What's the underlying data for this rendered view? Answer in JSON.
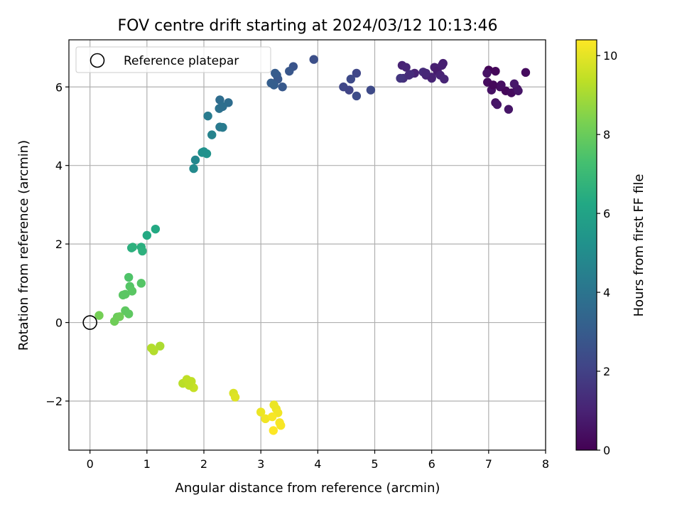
{
  "chart_data": {
    "type": "scatter",
    "title": "FOV centre drift starting at 2024/03/12 10:13:46",
    "xlabel": "Angular distance from reference (arcmin)",
    "ylabel": "Rotation from reference (arcmin)",
    "colorbar_label": "Hours from first FF file",
    "colormap": "viridis",
    "xlim": [
      -0.37,
      8.0
    ],
    "ylim": [
      -3.25,
      7.2
    ],
    "clim": [
      0,
      10.4
    ],
    "xticks": [
      0,
      1,
      2,
      3,
      4,
      5,
      6,
      7,
      8
    ],
    "xtick_labels": [
      "0",
      "1",
      "2",
      "3",
      "4",
      "5",
      "6",
      "7",
      "8"
    ],
    "yticks": [
      -2,
      0,
      2,
      4,
      6
    ],
    "ytick_labels": [
      "−2",
      "0",
      "2",
      "4",
      "6"
    ],
    "cticks": [
      0,
      2,
      4,
      6,
      8,
      10
    ],
    "ctick_labels": [
      "0",
      "2",
      "4",
      "6",
      "8",
      "10"
    ],
    "grid": true,
    "legend": {
      "position": "top-left",
      "entries": [
        "Reference platepar"
      ]
    },
    "reference_point": {
      "name": "Reference platepar",
      "x": 0,
      "y": 0
    },
    "series": [
      {
        "x": [
          7.0,
          7.12,
          6.98,
          7.2,
          7.05,
          7.3,
          7.4,
          7.5,
          7.12,
          7.15,
          7.35,
          7.45,
          7.65,
          6.97,
          7.08,
          7.22,
          7.52,
          5.48,
          5.55,
          5.6,
          5.7,
          5.85,
          5.9,
          6.0,
          6.05,
          6.1,
          6.15,
          6.2,
          6.22,
          5.5,
          5.62,
          6.0,
          5.45,
          5.9,
          6.18,
          4.45,
          4.55,
          4.58,
          4.68,
          4.68,
          4.93,
          3.93,
          3.57,
          3.5,
          3.38,
          3.28,
          3.23,
          3.18,
          3.3,
          3.25,
          3.23,
          2.43,
          2.28,
          2.27,
          2.33,
          2.28,
          2.33,
          2.07,
          2.14,
          1.85,
          1.82,
          1.97,
          2.05,
          2.0,
          1.15,
          1.0,
          0.9,
          0.92,
          0.73,
          0.75,
          0.68,
          0.7,
          0.74,
          0.62,
          0.62,
          0.68,
          0.9,
          0.48,
          0.43,
          0.52,
          0.16,
          0.58,
          1.23,
          1.12,
          1.08,
          1.63,
          1.7,
          1.78,
          1.82,
          1.74,
          2.52,
          2.55,
          3.23,
          3.27,
          3.3,
          3.0,
          3.08,
          3.2,
          3.33,
          3.35,
          3.22
        ],
        "y": [
          6.43,
          6.4,
          6.12,
          6.0,
          5.92,
          5.9,
          5.85,
          5.95,
          5.6,
          5.55,
          5.43,
          6.08,
          6.37,
          6.35,
          6.05,
          6.05,
          5.9,
          6.55,
          6.5,
          6.3,
          6.35,
          6.38,
          6.3,
          6.22,
          6.5,
          6.4,
          6.3,
          6.6,
          6.2,
          6.22,
          6.32,
          6.25,
          6.22,
          6.35,
          6.55,
          6.0,
          5.92,
          6.2,
          6.35,
          5.77,
          5.92,
          6.7,
          6.52,
          6.4,
          6.0,
          6.3,
          6.08,
          6.1,
          6.2,
          6.35,
          6.05,
          5.6,
          5.67,
          5.45,
          5.5,
          4.98,
          4.97,
          5.26,
          4.78,
          4.14,
          3.92,
          4.33,
          4.3,
          4.35,
          2.38,
          2.22,
          1.92,
          1.82,
          1.9,
          1.92,
          1.15,
          0.92,
          0.8,
          0.72,
          0.3,
          0.22,
          1.0,
          0.14,
          0.03,
          0.15,
          0.18,
          0.7,
          -0.6,
          -0.72,
          -0.65,
          -1.55,
          -1.45,
          -1.5,
          -1.66,
          -1.6,
          -1.8,
          -1.9,
          -2.1,
          -2.2,
          -2.3,
          -2.28,
          -2.45,
          -2.4,
          -2.55,
          -2.62,
          -2.75
        ],
        "hours": [
          0.1,
          0.2,
          0.3,
          0.4,
          0.5,
          0.2,
          0.3,
          0.4,
          0.5,
          0.6,
          0.6,
          0.7,
          0.3,
          0.5,
          0.2,
          0.4,
          0.6,
          1.0,
          1.1,
          1.2,
          1.0,
          1.3,
          1.1,
          1.2,
          0.9,
          0.8,
          1.0,
          0.9,
          1.1,
          1.4,
          1.3,
          1.0,
          1.6,
          1.2,
          0.9,
          2.2,
          2.1,
          2.3,
          2.2,
          2.4,
          2.3,
          2.5,
          2.7,
          2.8,
          2.9,
          3.0,
          3.0,
          3.1,
          2.9,
          3.0,
          3.1,
          3.7,
          3.7,
          3.9,
          3.8,
          4.2,
          4.3,
          4.3,
          4.6,
          4.8,
          4.9,
          5.2,
          5.3,
          5.2,
          6.3,
          6.3,
          6.5,
          6.6,
          6.5,
          6.6,
          7.5,
          7.6,
          7.7,
          7.7,
          7.8,
          7.8,
          7.6,
          8.0,
          8.1,
          8.1,
          8.2,
          7.7,
          9.1,
          9.2,
          9.2,
          9.3,
          9.4,
          9.4,
          9.5,
          9.4,
          9.8,
          9.9,
          10.1,
          10.1,
          10.2,
          10.1,
          10.2,
          10.3,
          10.3,
          10.3,
          10.4
        ]
      }
    ]
  }
}
